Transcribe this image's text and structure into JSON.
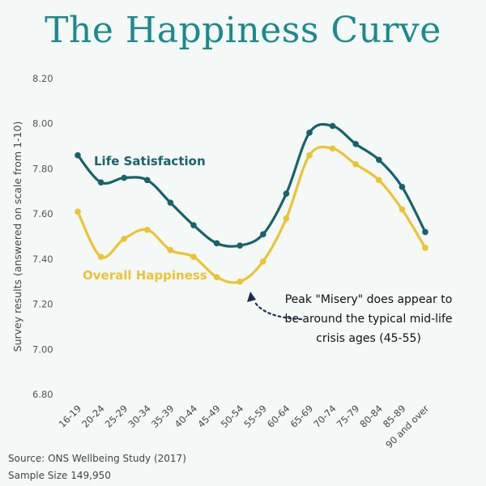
{
  "chart_data": {
    "type": "line",
    "title": "The Happiness Curve",
    "ylabel": "Survey results (answered on scale from 1-10)",
    "xlabel": "",
    "ylim": [
      6.8,
      8.2
    ],
    "yticks": [
      "8.20",
      "8.00",
      "7.80",
      "7.60",
      "7.40",
      "7.20",
      "7.00",
      "6.80"
    ],
    "ytick_values": [
      8.2,
      8.0,
      7.8,
      7.6,
      7.4,
      7.2,
      7.0,
      6.8
    ],
    "grid": false,
    "categories": [
      "16-19",
      "20-24",
      "25-29",
      "30-34",
      "35-39",
      "40-44",
      "45-49",
      "50-54",
      "55-59",
      "60-64",
      "65-69",
      "70-74",
      "75-79",
      "80-84",
      "85-89",
      "90 and over"
    ],
    "series": [
      {
        "name": "Life Satisfaction",
        "color": "#16636b",
        "values": [
          7.86,
          7.74,
          7.76,
          7.75,
          7.65,
          7.55,
          7.47,
          7.46,
          7.51,
          7.69,
          7.96,
          7.99,
          7.91,
          7.84,
          7.72,
          7.52
        ]
      },
      {
        "name": "Overall Happiness",
        "color": "#ecc333",
        "values": [
          7.61,
          7.41,
          7.49,
          7.53,
          7.44,
          7.41,
          7.32,
          7.3,
          7.39,
          7.58,
          7.86,
          7.89,
          7.82,
          7.75,
          7.62,
          7.45
        ]
      }
    ],
    "annotation": {
      "lines": [
        "Peak \"Misery\" does appear to",
        "be around the typical mid-life",
        "crisis ages (45-55)"
      ],
      "arrow_color": "#1c2f52"
    }
  },
  "footer": {
    "source": "Source: ONS Wellbeing Study (2017)",
    "sample": "Sample Size 149,950"
  }
}
